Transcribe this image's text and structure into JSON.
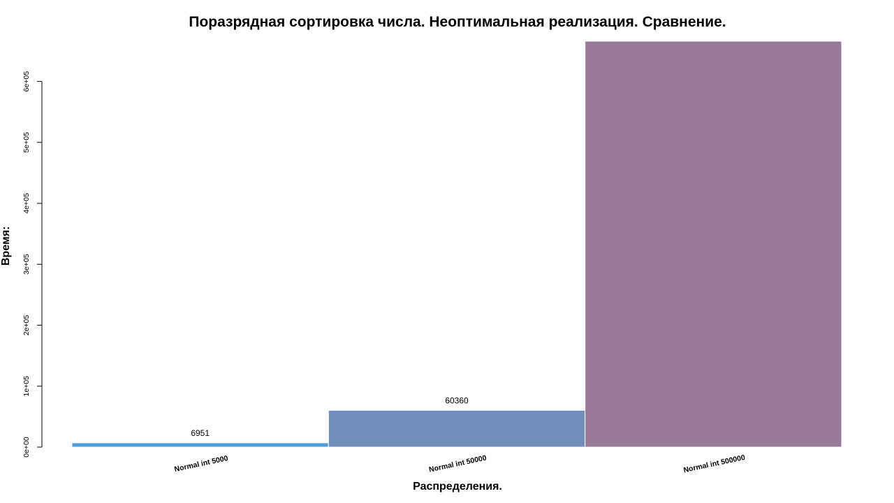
{
  "chart_data": {
    "type": "bar",
    "title": "Поразрядная сортировка числа. Неоптимальная реализация. Сравнение.",
    "xlabel": "Распределения.",
    "ylabel": "Время:",
    "categories": [
      "Normal int 5000",
      "Normal int 50000",
      "Normal int 500000"
    ],
    "values": [
      6951,
      60360,
      666000
    ],
    "data_labels": [
      "6951",
      "60360",
      ""
    ],
    "colors": [
      "#4b9bd8",
      "#728dbb",
      "#967a98"
    ],
    "ylim": [
      0,
      666000
    ],
    "y_ticks": [
      0,
      100000,
      200000,
      300000,
      400000,
      500000,
      600000
    ],
    "y_tick_labels": [
      "0e+00",
      "1e+05",
      "2e+05",
      "3e+05",
      "4e+05",
      "5e+05",
      "6e+05"
    ],
    "grid": false,
    "legend": "none"
  }
}
